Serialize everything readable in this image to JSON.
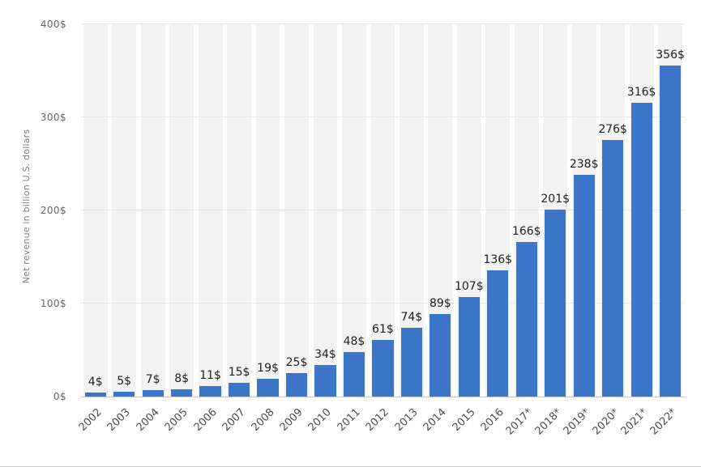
{
  "chart_data": {
    "type": "bar",
    "title": "",
    "ylabel": "Net revenue in billion U.S. dollars",
    "xlabel": "",
    "categories": [
      "2002",
      "2003",
      "2004",
      "2005",
      "2006",
      "2007",
      "2008",
      "2009",
      "2010",
      "2011",
      "2012",
      "2013",
      "2014",
      "2015",
      "2016",
      "2017*",
      "2018*",
      "2019*",
      "2020*",
      "2021*",
      "2022*"
    ],
    "values": [
      4,
      5,
      7,
      8,
      11,
      15,
      19,
      25,
      34,
      48,
      61,
      74,
      89,
      107,
      136,
      166,
      201,
      238,
      276,
      316,
      356
    ],
    "value_labels": [
      "4$",
      "5$",
      "7$",
      "8$",
      "11$",
      "15$",
      "19$",
      "25$",
      "34$",
      "48$",
      "61$",
      "74$",
      "89$",
      "107$",
      "136$",
      "166$",
      "201$",
      "238$",
      "276$",
      "316$",
      "356$"
    ],
    "yticks": [
      {
        "value": 0,
        "label": "0$"
      },
      {
        "value": 100,
        "label": "100$"
      },
      {
        "value": 200,
        "label": "200$"
      },
      {
        "value": 300,
        "label": "300$"
      },
      {
        "value": 400,
        "label": "400$"
      }
    ],
    "ylim": [
      0,
      400
    ],
    "grid": true,
    "legend": "none",
    "bar_color": "#3b76c8",
    "band_color": "#f2f2f2"
  }
}
